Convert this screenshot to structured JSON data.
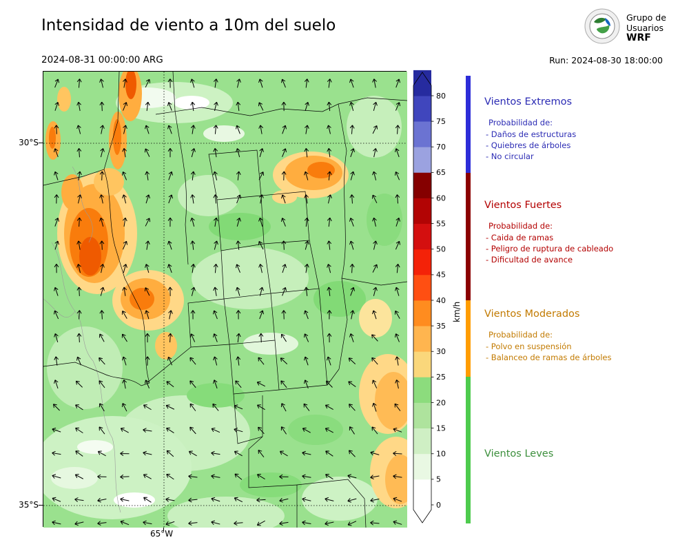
{
  "header": {
    "title": "Intensidad de viento a 10m del suelo",
    "valid_time": "2024-08-31 00:00:00 ARG",
    "run_label": "Run: 2024-08-30 18:00:00",
    "logo_text": [
      "Grupo de",
      "Usuarios",
      "WRF"
    ]
  },
  "map": {
    "lat_labels": [
      "30°S",
      "35°S"
    ],
    "lon_label": "65°W"
  },
  "colorbar": {
    "unit": "km/h",
    "ticks": [
      0,
      5,
      10,
      15,
      20,
      25,
      30,
      35,
      40,
      45,
      50,
      55,
      60,
      65,
      70,
      75,
      80
    ],
    "segment_colors": [
      "#ffffff",
      "#e9f8e3",
      "#cfefc4",
      "#aee39d",
      "#8cdc7d",
      "#fad77b",
      "#ffb54f",
      "#ff8c1f",
      "#ff4f12",
      "#f42208",
      "#d40f0f",
      "#b20404",
      "#850000",
      "#9ba2e0",
      "#6b73d2",
      "#4046bd",
      "#262b9f"
    ],
    "over_color": "#262b9f",
    "under_color": "#ffffff"
  },
  "legend": {
    "categories": [
      {
        "name": "Vientos Extremos",
        "color": "#2b2bb4",
        "strip_color": "#2d2dd8",
        "min_kmh": 65,
        "prob_label": "Probabilidad de:",
        "items": [
          "- Daños de estructuras",
          "- Quiebres de árboles",
          "- No circular"
        ]
      },
      {
        "name": "Vientos Fuertes",
        "color": "#b30000",
        "strip_color": "#8b0000",
        "min_kmh": 40,
        "prob_label": "Probabilidad de:",
        "items": [
          "- Caida de ramas",
          "- Peligro de ruptura de cableado",
          "- Dificultad de avance"
        ]
      },
      {
        "name": "Vientos Moderados",
        "color": "#c27a00",
        "strip_color": "#ff9d00",
        "min_kmh": 25,
        "prob_label": "Probabilidad de:",
        "items": [
          "- Polvo en suspensión",
          "- Balanceo de ramas de árboles"
        ]
      },
      {
        "name": "Vientos Leves",
        "color": "#3c8f3c",
        "strip_color": "#4ecb4e",
        "min_kmh": 0,
        "prob_label": "",
        "items": []
      }
    ]
  }
}
